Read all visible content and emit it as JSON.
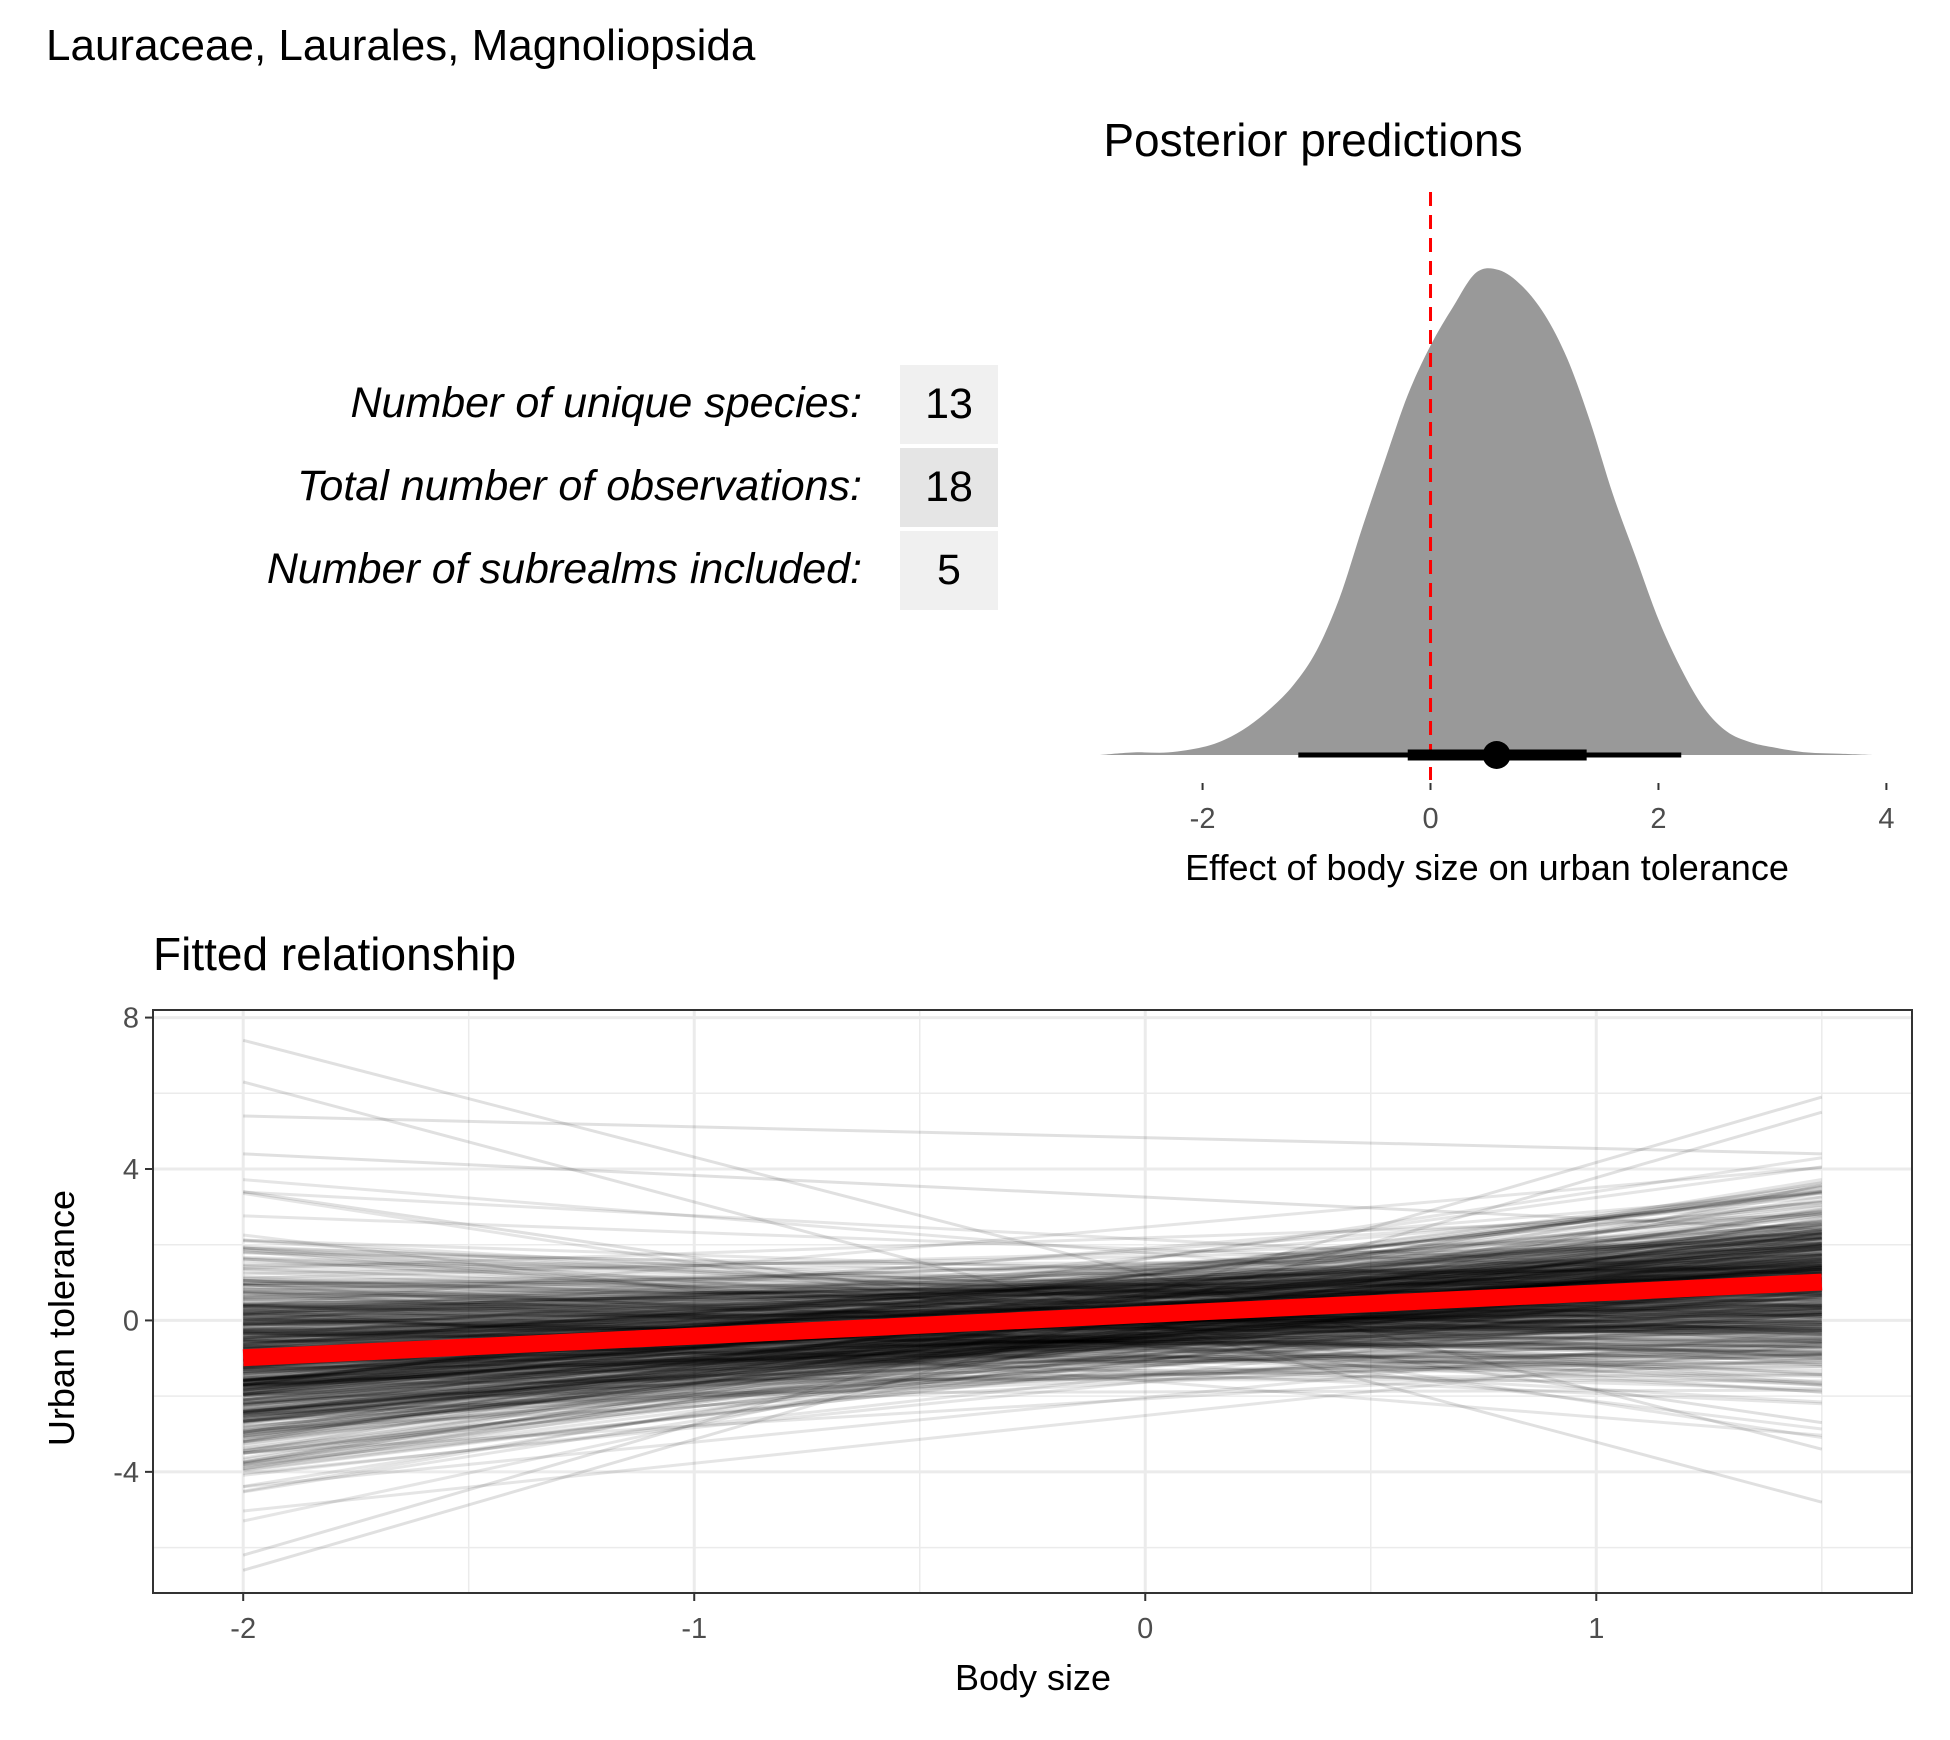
{
  "figure_title": "Lauraceae, Laurales, Magnoliopsida",
  "stats_table": {
    "rows": [
      {
        "label": "Number of unique species:",
        "value": "13"
      },
      {
        "label": "Total number of observations:",
        "value": "18"
      },
      {
        "label": "Number of subrealms included:",
        "value": "5"
      }
    ]
  },
  "colors": {
    "density_fill": "#999999",
    "zero_line": "#ff0000",
    "fit_line": "#ff0000",
    "draw_lines": "#000000",
    "table_cell_light": "#f0f0f0",
    "table_cell_dark": "#e5e5e5",
    "grid": "#ebebeb",
    "panel_border": "#333333"
  },
  "chart_data": [
    {
      "type": "area",
      "title": "Posterior predictions",
      "xlabel": "Effect of body size on urban tolerance",
      "ylabel": "",
      "xlim": [
        -2.9,
        3.9
      ],
      "x_ticks": [
        "-2",
        "0",
        "2",
        "4"
      ],
      "grid": false,
      "reference_line": {
        "x": 0,
        "style": "dashed"
      },
      "density": {
        "x": [
          -2.9,
          -2.6,
          -2.3,
          -2.0,
          -1.8,
          -1.6,
          -1.4,
          -1.2,
          -1.0,
          -0.8,
          -0.6,
          -0.4,
          -0.2,
          0.0,
          0.2,
          0.4,
          0.6,
          0.8,
          1.0,
          1.2,
          1.4,
          1.6,
          1.8,
          2.0,
          2.2,
          2.4,
          2.6,
          2.8,
          3.0,
          3.3,
          3.6,
          3.9
        ],
        "y": [
          0.0,
          0.01,
          0.01,
          0.03,
          0.06,
          0.11,
          0.18,
          0.27,
          0.4,
          0.6,
          0.87,
          1.13,
          1.38,
          1.57,
          1.72,
          1.85,
          1.86,
          1.8,
          1.69,
          1.52,
          1.28,
          1.0,
          0.76,
          0.52,
          0.33,
          0.18,
          0.09,
          0.05,
          0.03,
          0.01,
          0.005,
          0.0
        ]
      },
      "point_interval": {
        "point": 0.58,
        "inner": [
          -0.2,
          1.37
        ],
        "outer": [
          -1.16,
          2.2
        ]
      }
    },
    {
      "type": "line",
      "title": "Fitted relationship",
      "xlabel": "Body size",
      "ylabel": "Urban tolerance",
      "xlim": [
        -2.2,
        1.7
      ],
      "ylim": [
        -7.2,
        8.2
      ],
      "x_ticks": [
        "-2",
        "-1",
        "0",
        "1"
      ],
      "y_ticks": [
        "-4",
        "0",
        "4",
        "8"
      ],
      "grid": true,
      "x_range": [
        -2.0,
        1.5
      ],
      "mean_fit": {
        "intercept": 0.157,
        "slope": 0.571
      },
      "posterior_draws": {
        "count": 600,
        "intercept_mean": 0.1,
        "intercept_sd": 0.75,
        "slope_mean": 0.57,
        "slope_sd": 0.6,
        "opacity": 0.1,
        "highlighted": [
          [
            -2,
            7.4,
            1.5,
            -3.4
          ],
          [
            -2,
            6.3,
            1.5,
            -4.8
          ],
          [
            -2,
            5.4,
            1.5,
            4.4
          ],
          [
            -2,
            4.4,
            1.5,
            2.4
          ],
          [
            -2,
            -6.2,
            1.5,
            5.9
          ],
          [
            -2,
            -6.6,
            1.5,
            5.5
          ],
          [
            -2,
            3.4,
            1.5,
            -2.7
          ]
        ]
      }
    }
  ]
}
